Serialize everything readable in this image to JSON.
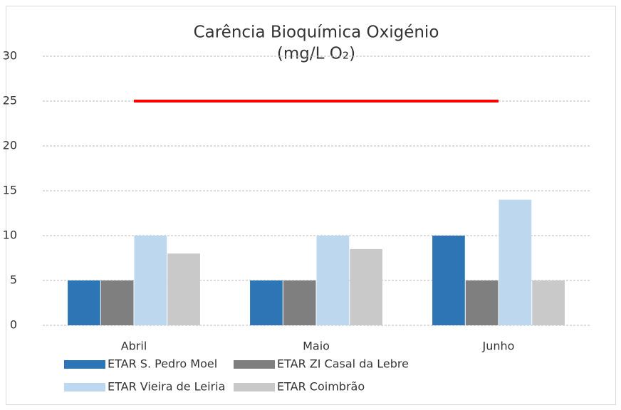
{
  "chart_data": {
    "type": "bar",
    "title": "Carência Bioquímica Oxigénio",
    "subtitle": "(mg/L O₂)",
    "categories": [
      "Abril",
      "Maio",
      "Junho"
    ],
    "series": [
      {
        "name": "ETAR S. Pedro Moel",
        "color": "#2e75b6",
        "values": [
          5,
          5,
          10
        ]
      },
      {
        "name": "ETAR ZI Casal da Lebre",
        "color": "#7f7f7f",
        "values": [
          5,
          5,
          5
        ]
      },
      {
        "name": "ETAR Vieira de Leiria",
        "color": "#bdd7ee",
        "values": [
          10,
          10,
          14
        ]
      },
      {
        "name": "ETAR Coimbrão",
        "color": "#c9c9c9",
        "values": [
          8,
          8.5,
          5
        ]
      }
    ],
    "reference_line": {
      "color": "#ff0000",
      "values": [
        25,
        25,
        25
      ]
    },
    "ylim": [
      0,
      30
    ],
    "yticks": [
      0,
      5,
      10,
      15,
      20,
      25,
      30
    ],
    "grid": true
  }
}
